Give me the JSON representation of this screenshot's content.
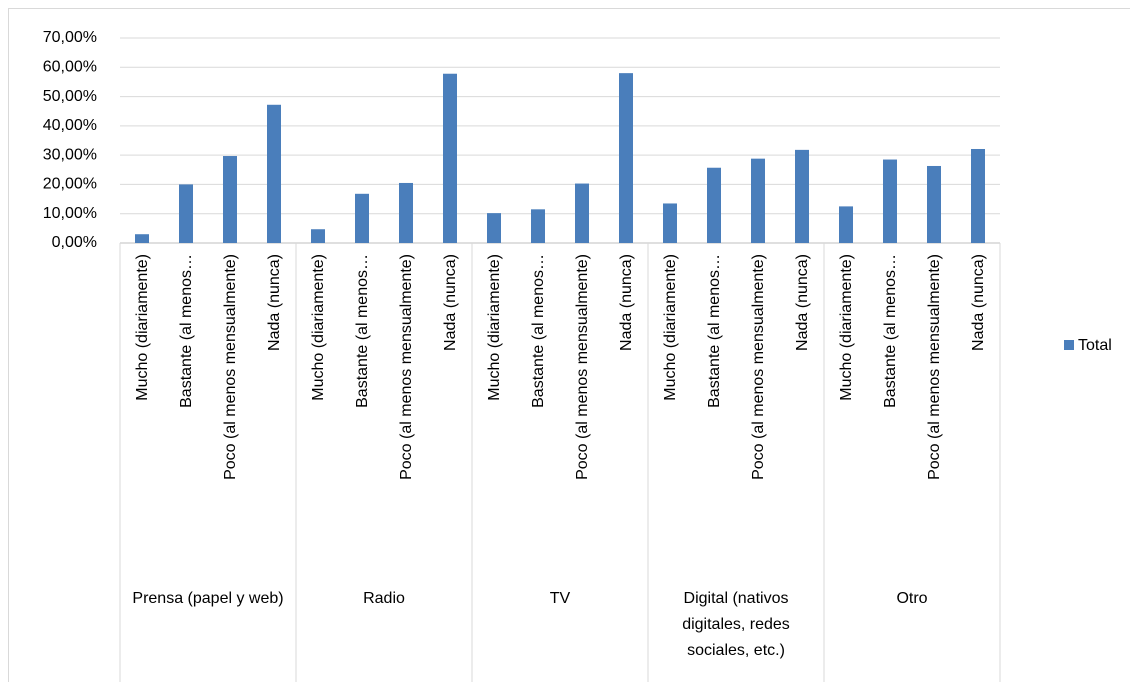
{
  "chart_data": {
    "type": "bar",
    "categories": [
      "Mucho (diariamente)",
      "Bastante (al menos…",
      "Poco (al menos mensualmente)",
      "Nada (nunca)",
      "Mucho (diariamente)",
      "Bastante (al menos…",
      "Poco (al menos mensualmente)",
      "Nada (nunca)",
      "Mucho (diariamente)",
      "Bastante (al menos…",
      "Poco (al menos mensualmente)",
      "Nada (nunca)",
      "Mucho (diariamente)",
      "Bastante (al menos…",
      "Poco (al menos mensualmente)",
      "Nada (nunca)",
      "Mucho (diariamente)",
      "Bastante (al menos…",
      "Poco (al menos mensualmente)",
      "Nada (nunca)"
    ],
    "groups": [
      "Prensa (papel y web)",
      "Radio",
      "TV",
      "Digital (nativos digitales, redes sociales, etc.)",
      "Otro"
    ],
    "series": [
      {
        "name": "Total",
        "color": "#4a7ebb",
        "values": [
          3,
          20,
          29.7,
          47.2,
          4.7,
          16.8,
          20.5,
          57.8,
          10.2,
          11.5,
          20.3,
          58,
          13.5,
          25.7,
          28.8,
          31.8,
          12.5,
          28.5,
          26.3,
          32.1
        ]
      }
    ],
    "ylim": [
      0,
      70
    ],
    "yticks": [
      {
        "value": 0,
        "label": "0,00%"
      },
      {
        "value": 10,
        "label": "10,00%"
      },
      {
        "value": 20,
        "label": "20,00%"
      },
      {
        "value": 30,
        "label": "30,00%"
      },
      {
        "value": 40,
        "label": "40,00%"
      },
      {
        "value": 50,
        "label": "50,00%"
      },
      {
        "value": 60,
        "label": "60,00%"
      },
      {
        "value": 70,
        "label": "70,00%"
      }
    ],
    "grid": true,
    "legend": "right"
  }
}
